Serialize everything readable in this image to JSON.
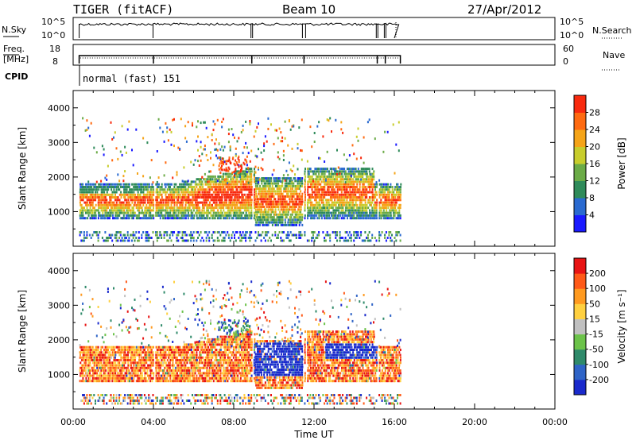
{
  "header": {
    "station": "TIGER (fitACF)",
    "beam": "Beam 10",
    "date": "27/Apr/2012"
  },
  "side_labels": {
    "nsky": "N.Sky",
    "freq_line1": "Freq.",
    "freq_line2": "[MHz]",
    "cpid": "CPID",
    "nsearch": "N.Search",
    "nave": "Nave"
  },
  "strip_ticks": {
    "nsky_left": [
      "10^5",
      "10^0"
    ],
    "nsky_right": [
      "10^5",
      "10^0"
    ],
    "freq_left": [
      "18",
      "8"
    ],
    "nave_right": [
      "60",
      "0"
    ]
  },
  "cpid_text": "normal (fast) 151",
  "chart_data": [
    {
      "type": "heatmap",
      "name": "power",
      "ylabel": "Slant Range [km]",
      "ylim": [
        0,
        4500
      ],
      "y_ticks": [
        "4000",
        "3000",
        "2000",
        "1000"
      ],
      "x_ticks": [
        "00:00",
        "04:00",
        "08:00",
        "12:00",
        "16:00",
        "20:00",
        "00:00"
      ],
      "xlim_hours": [
        0,
        24
      ],
      "colorbar": {
        "label": "Power [dB]",
        "ticks": [
          "28",
          "24",
          "20",
          "16",
          "12",
          "8",
          "4"
        ],
        "range": [
          0,
          32
        ],
        "colors": [
          "#1a1aff",
          "#2a6ad0",
          "#2f8b5a",
          "#6bab47",
          "#c8cd2c",
          "#f5a418",
          "#ff6a10",
          "#f82a0e"
        ]
      },
      "data_end_hours": 16.3
    },
    {
      "type": "heatmap",
      "name": "velocity",
      "ylabel": "Slant Range [km]",
      "ylim": [
        0,
        4500
      ],
      "y_ticks": [
        "4000",
        "3000",
        "2000",
        "1000"
      ],
      "x_ticks": [
        "00:00",
        "04:00",
        "08:00",
        "12:00",
        "16:00",
        "20:00",
        "00:00"
      ],
      "xlabel": "Time UT",
      "xlim_hours": [
        0,
        24
      ],
      "colorbar": {
        "label": "Velocity [m s⁻¹]",
        "ticks": [
          "200",
          "100",
          "50",
          "15",
          "-15",
          "-50",
          "-100",
          "-200"
        ],
        "colors": [
          "#1a2acc",
          "#2f64c7",
          "#2f8a6a",
          "#6cc34a",
          "#c0c0c0",
          "#ffd040",
          "#ff9a20",
          "#ff5a18",
          "#e81414"
        ]
      },
      "data_end_hours": 16.3
    }
  ]
}
